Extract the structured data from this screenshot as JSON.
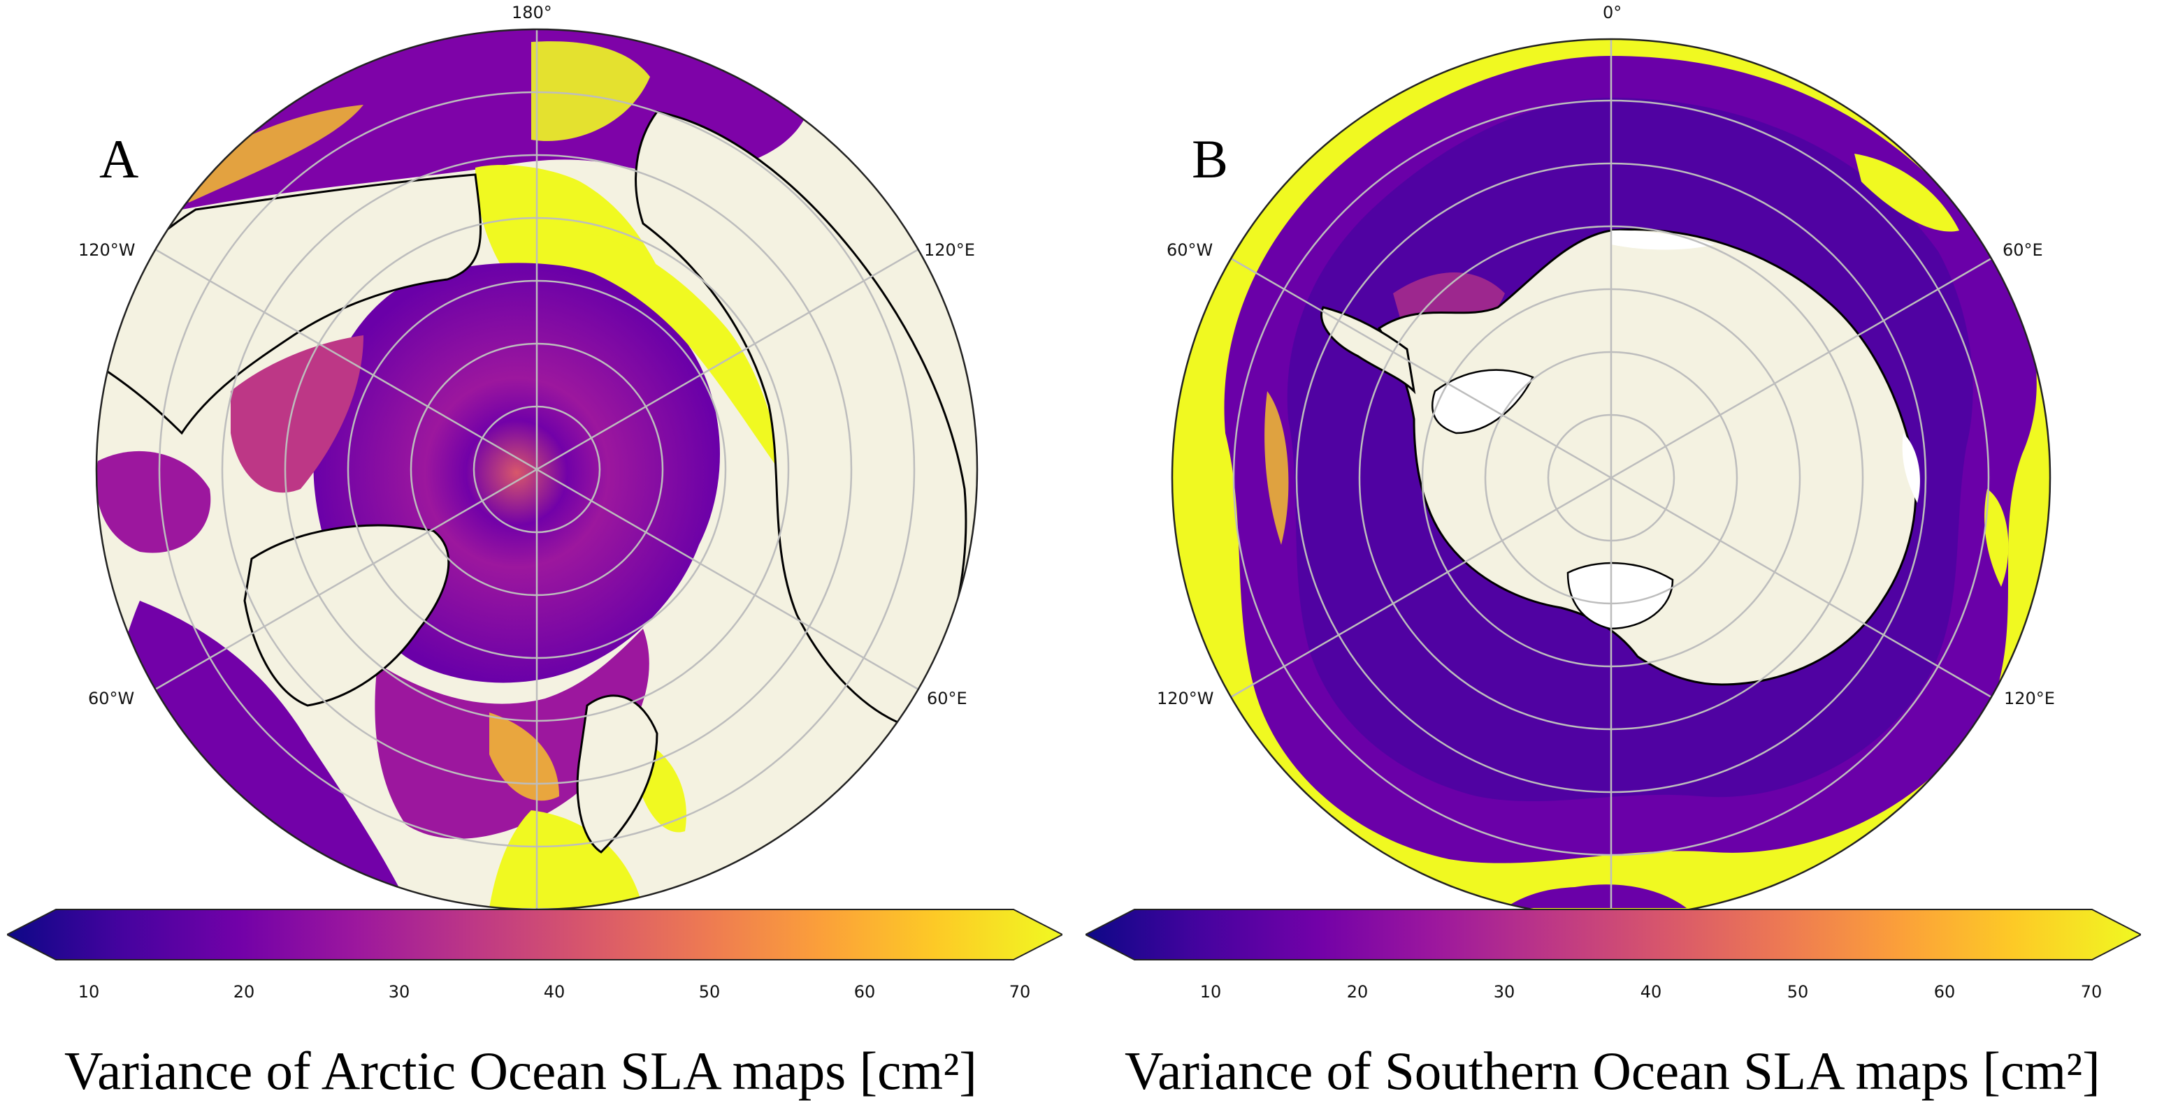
{
  "colors": {
    "land": "#f4f2e1",
    "ice_shelf": "#ffffff",
    "graticule": "#bdbdbd",
    "coast": "#000000",
    "colormap": "plasma",
    "plasma_stops": [
      "#0d0887",
      "#46039f",
      "#7201a8",
      "#9c179e",
      "#bd3786",
      "#d8576b",
      "#ed7953",
      "#fb9f3a",
      "#fdca26",
      "#f0f921"
    ]
  },
  "colorbar": {
    "colormap": "plasma",
    "extend": "both",
    "min": 5,
    "max": 70,
    "ticks": [
      "10",
      "20",
      "30",
      "40",
      "50",
      "60",
      "70"
    ]
  },
  "panels": [
    {
      "letter": "A",
      "projection": "north-polar-stereographic",
      "lon_labels": {
        "top": "180°",
        "upper_left": "120°W",
        "upper_right": "120°E",
        "lower_left": "60°W",
        "lower_right": "60°E"
      },
      "caption": "Variance of Arctic Ocean SLA maps [cm²]"
    },
    {
      "letter": "B",
      "projection": "south-polar-stereographic",
      "lon_labels": {
        "top": "0°",
        "upper_left": "60°W",
        "upper_right": "60°E",
        "lower_left": "120°W",
        "lower_right": "120°E"
      },
      "caption": "Variance of Southern Ocean SLA maps [cm²]"
    }
  ]
}
